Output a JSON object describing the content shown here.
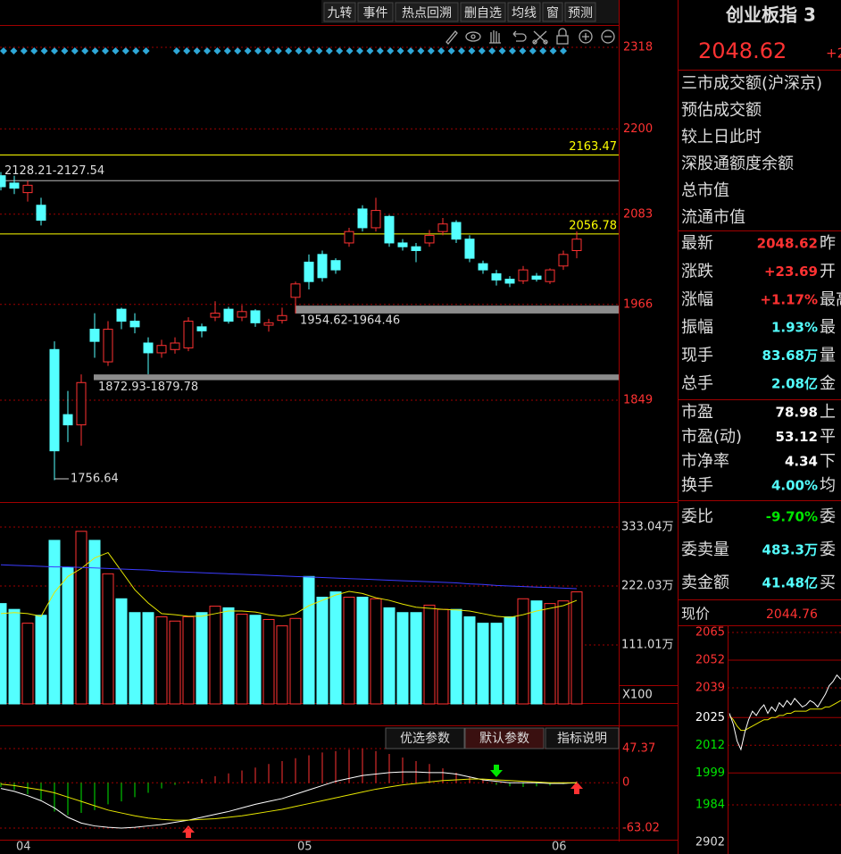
{
  "toolbar": {
    "buttons": [
      "九转",
      "事件",
      "热点回溯",
      "删自选",
      "均线",
      "窗",
      "预测"
    ]
  },
  "kline": {
    "type": "candlestick",
    "log_scale": true,
    "grid": true,
    "up_color": "#ff3232",
    "down_color": "#54ffff",
    "categories": [
      null,
      "04",
      null,
      null,
      null,
      null,
      null,
      null,
      null,
      null,
      null,
      null,
      null,
      null,
      null,
      null,
      null,
      null,
      null,
      null,
      null,
      null,
      "05",
      null,
      null,
      null,
      null,
      null,
      null,
      null,
      null,
      null,
      null,
      null,
      null,
      null,
      null,
      null,
      null,
      null,
      null,
      "06",
      null,
      null
    ],
    "open": [
      2135,
      2125,
      2112,
      2095,
      1910,
      1832,
      1820,
      1935,
      1895,
      1960,
      1945,
      1918,
      1906,
      1910,
      1912,
      1938,
      1950,
      1960,
      1950,
      1958,
      1940,
      1946,
      1975,
      2020,
      2030,
      2022,
      2045,
      2090,
      2065,
      2080,
      2045,
      2040,
      2045,
      2060,
      2072,
      2050,
      2018,
      2005,
      1998,
      1996,
      2002,
      1995,
      2015,
      2035
    ],
    "high": [
      2140,
      2135,
      2128,
      2105,
      1920,
      1860,
      1879.78,
      1955,
      1945,
      1962,
      1955,
      1925,
      1922,
      1925,
      1950,
      1942,
      1970,
      1963,
      1965,
      1960,
      1948,
      1962,
      1995,
      2030,
      2035,
      2025,
      2065,
      2095,
      2105,
      2082,
      2050,
      2045,
      2062,
      2078,
      2075,
      2055,
      2022,
      2010,
      2002,
      2015,
      2006,
      2012,
      2035,
      2060
    ],
    "low": [
      2115,
      2110,
      2100,
      2068,
      1756.64,
      1800,
      1796,
      1900,
      1890,
      1935,
      1930,
      1880,
      1900,
      1905,
      1908,
      1925,
      1945,
      1942,
      1945,
      1938,
      1932,
      1942,
      1954.62,
      1985,
      1995,
      2005,
      2040,
      2060,
      2060,
      2040,
      2035,
      2020,
      2040,
      2055,
      2045,
      2020,
      2005,
      1990,
      1988,
      1992,
      1995,
      1992,
      2010,
      2025
    ],
    "close": [
      2120,
      2118,
      2122,
      2075,
      1790,
      1820,
      1870,
      1920,
      1935,
      1945,
      1938,
      1906,
      1915,
      1918,
      1945,
      1933,
      1955,
      1945,
      1957,
      1943,
      1943,
      1952,
      1992,
      1995,
      2000,
      2010,
      2060,
      2065,
      2088,
      2045,
      2040,
      2035,
      2055,
      2070,
      2050,
      2025,
      2010,
      1997,
      1993,
      2010,
      1998,
      2010,
      2030,
      2050
    ],
    "yticks": [
      2318,
      2200,
      2083,
      1966,
      1849
    ],
    "levels": [
      {
        "value": 2163.47,
        "color": "#ffff00"
      },
      {
        "value": 2056.78,
        "color": "#ffff00"
      }
    ],
    "ranges": [
      {
        "low": 2127.54,
        "high": 2128.21,
        "label": "2128.21-2127.54"
      }
    ],
    "bands": [
      {
        "low": 1954.62,
        "high": 1964.46,
        "label": "1954.62-1964.46"
      },
      {
        "low": 1872.93,
        "high": 1879.78,
        "label": "1872.93-1879.78"
      }
    ]
  },
  "volume": {
    "values": [
      189,
      178,
      152,
      167,
      308,
      257,
      325,
      308,
      245,
      198,
      172,
      172,
      164,
      156,
      164,
      172,
      184,
      181,
      169,
      167,
      159,
      147,
      161,
      240,
      201,
      211,
      201,
      201,
      198,
      181,
      172,
      172,
      186,
      178,
      178,
      164,
      152,
      152,
      164,
      198,
      194,
      189,
      194,
      211
    ],
    "yticks": [
      {
        "value": 333.04,
        "label": "333.04万"
      },
      {
        "value": 222.03,
        "label": "222.03万"
      },
      {
        "value": 111.01,
        "label": "111.01万"
      }
    ],
    "unit_label": "X100",
    "ma": [
      {
        "color": "#e6e600",
        "values": [
          170,
          172,
          170,
          165,
          210,
          240,
          255,
          275,
          285,
          250,
          215,
          190,
          170,
          168,
          165,
          165,
          170,
          175,
          175,
          173,
          168,
          165,
          170,
          185,
          195,
          205,
          212,
          208,
          200,
          195,
          188,
          182,
          180,
          178,
          177,
          175,
          170,
          165,
          163,
          168,
          175,
          180,
          185,
          195
        ]
      },
      {
        "color": "#3c3cff",
        "values": [
          262,
          261,
          260,
          259,
          258,
          258,
          257,
          256,
          255,
          254,
          253,
          252,
          250,
          249,
          248,
          247,
          246,
          245,
          244,
          243,
          242,
          241,
          240,
          239,
          238,
          237,
          236,
          235,
          234,
          233,
          232,
          231,
          230,
          229,
          228,
          226,
          225,
          223,
          222,
          221,
          220,
          219,
          218,
          217
        ]
      }
    ]
  },
  "macd": {
    "tabs": [
      "优选参数",
      "默认参数",
      "指标说明"
    ],
    "yticks": [
      47.37,
      0,
      -63.02
    ],
    "hist": [
      -6,
      -10,
      -16,
      -24,
      -40,
      -45,
      -42,
      -38,
      -30,
      -26,
      -20,
      -14,
      -8,
      -3,
      2,
      5,
      9,
      13,
      17,
      21,
      26,
      30,
      34,
      38,
      42,
      44,
      46,
      47,
      44,
      40,
      35,
      30,
      26,
      20,
      14,
      8,
      4,
      -3,
      -5,
      -6,
      -5,
      -4,
      -2,
      2
    ],
    "dif": [
      -8,
      -12,
      -18,
      -25,
      -35,
      -48,
      -56,
      -60,
      -62,
      -63,
      -62,
      -60,
      -58,
      -55,
      -52,
      -48,
      -44,
      -40,
      -35,
      -30,
      -26,
      -22,
      -16,
      -10,
      -4,
      2,
      6,
      10,
      12,
      14,
      15,
      15,
      14,
      14,
      12,
      8,
      4,
      2,
      0,
      0,
      0,
      -1,
      -1,
      0
    ],
    "dea": [
      -2,
      -4,
      -7,
      -10,
      -14,
      -20,
      -26,
      -32,
      -38,
      -42,
      -46,
      -49,
      -51,
      -52,
      -52,
      -51,
      -50,
      -48,
      -46,
      -43,
      -40,
      -37,
      -33,
      -29,
      -25,
      -21,
      -17,
      -13,
      -9,
      -6,
      -3,
      -1,
      1,
      3,
      4,
      5,
      5,
      4,
      3,
      2,
      1,
      0,
      0,
      0
    ],
    "dif_color": "#ffffff",
    "dea_color": "#e6e600"
  },
  "panel": {
    "name": "创业板指 3",
    "price": "2048.62",
    "change": "+2",
    "info_rows": [
      "三市成交额(沪深京)",
      "预估成交额",
      "较上日此时",
      "深股通额度余额",
      "总市值",
      "流通市值"
    ],
    "quote_groups": [
      [
        {
          "label": "最新",
          "value": "2048.62",
          "color": "#ff3232",
          "next": "昨"
        },
        {
          "label": "涨跌",
          "value": "+23.69",
          "color": "#ff3232",
          "next": "开"
        },
        {
          "label": "涨幅",
          "value": "+1.17%",
          "color": "#ff3232",
          "next": "最高"
        },
        {
          "label": "振幅",
          "value": "1.93%",
          "color": "#54ffff",
          "next": "最"
        },
        {
          "label": "现手",
          "value": "83.68万",
          "color": "#54ffff",
          "next": "量"
        },
        {
          "label": "总手",
          "value": "2.08亿",
          "color": "#54ffff",
          "next": "金"
        }
      ],
      [
        {
          "label": "市盈",
          "value": "78.98",
          "color": "#ffffff",
          "next": "上"
        },
        {
          "label": "市盈(动)",
          "value": "53.12",
          "color": "#ffffff",
          "next": "平"
        },
        {
          "label": "市净率",
          "value": "4.34",
          "color": "#ffffff",
          "next": "下"
        },
        {
          "label": "换手",
          "value": "4.00%",
          "color": "#54ffff",
          "next": "均"
        }
      ],
      [
        {
          "label": "委比",
          "value": "-9.70%",
          "color": "#00e600",
          "next": "委"
        },
        {
          "label": "委卖量",
          "value": "483.3万",
          "color": "#54ffff",
          "next": "委"
        },
        {
          "label": "卖金额",
          "value": "41.48亿",
          "color": "#54ffff",
          "next": "买"
        }
      ]
    ]
  },
  "intraday": {
    "label": "现价",
    "price": 2044.76,
    "yticks": [
      2065,
      2052,
      2039,
      2025,
      2012,
      1999,
      1984
    ],
    "tick_colors": [
      "#ff3232",
      "#ff3232",
      "#ff3232",
      "#ffffff",
      "#00e600",
      "#00e600",
      "#00e600"
    ],
    "volume_tick": 2902,
    "price_line": [
      2027,
      2022,
      2014,
      2010,
      2018,
      2024,
      2028,
      2026,
      2029,
      2031,
      2027,
      2030,
      2028,
      2032,
      2030,
      2033,
      2031,
      2034,
      2032,
      2030,
      2031,
      2033,
      2032,
      2030,
      2033,
      2036,
      2040,
      2042,
      2045,
      2043
    ],
    "avg_line": [
      2026,
      2024,
      2021,
      2019,
      2019,
      2020,
      2021,
      2022,
      2023,
      2024,
      2024,
      2025,
      2025,
      2026,
      2026,
      2027,
      2027,
      2028,
      2028,
      2028,
      2028,
      2029,
      2029,
      2029,
      2029,
      2030,
      2030,
      2031,
      2032,
      2033
    ]
  }
}
